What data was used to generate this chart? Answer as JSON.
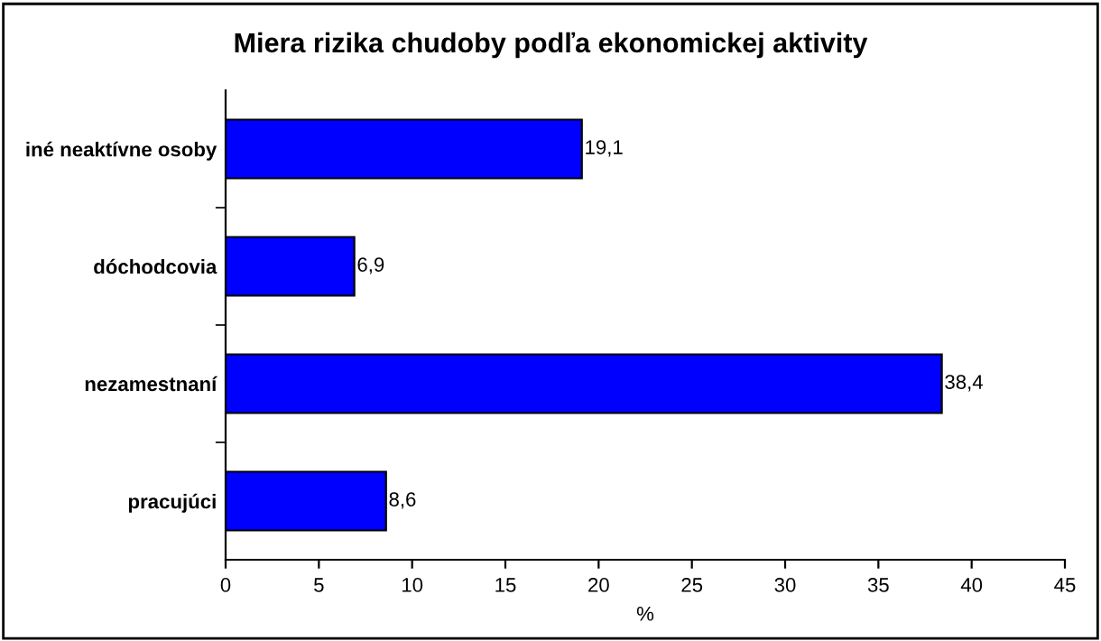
{
  "chart_data": {
    "type": "bar",
    "orientation": "horizontal",
    "title": "Miera rizika chudoby podľa ekonomickej aktivity",
    "categories": [
      "iné neaktívne osoby",
      "dóchodcovia",
      "nezamestnaní",
      "pracujúci"
    ],
    "values": [
      19.1,
      6.9,
      38.4,
      8.6
    ],
    "value_labels": [
      "19,1",
      "6,9",
      "38,4",
      "8,6"
    ],
    "color": "#0000ff",
    "xlabel": "%",
    "xlim": [
      0,
      45
    ],
    "xticks": [
      0,
      5,
      10,
      15,
      20,
      25,
      30,
      35,
      40,
      45
    ],
    "grid": false,
    "legend": false
  }
}
